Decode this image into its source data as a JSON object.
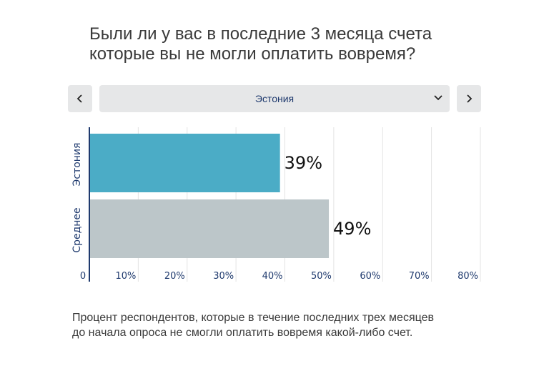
{
  "header": {
    "title_line1": "Были ли у вас в последние 3 месяца счета",
    "title_line2": "которые вы не могли оплатить вовремя?"
  },
  "selector": {
    "selected": "Эстония",
    "prev_icon": "chevron-left-icon",
    "next_icon": "chevron-right-icon",
    "dropdown_icon": "chevron-down-icon"
  },
  "colors": {
    "country_bar": "#4bacc6",
    "average_bar": "#bcc6c9",
    "axis_text": "#1f3a6e",
    "gridline": "#e3e3e3"
  },
  "chart_data": {
    "type": "bar",
    "orientation": "horizontal",
    "categories": [
      "Эстония",
      "Среднее"
    ],
    "values": [
      39,
      49
    ],
    "data_labels": [
      "39%",
      "49%"
    ],
    "xlim": [
      0,
      80
    ],
    "xticks": [
      "0",
      "10%",
      "20%",
      "30%",
      "40%",
      "50%",
      "60%",
      "70%",
      "80%"
    ],
    "xtick_values": [
      0,
      10,
      20,
      30,
      40,
      50,
      60,
      70,
      80
    ],
    "grid": true
  },
  "footnote": {
    "line1": "Процент респондентов, которые в течение последних трех месяцев",
    "line2": "до начала опроса не смогли оплатить вовремя какой-либо счет."
  }
}
